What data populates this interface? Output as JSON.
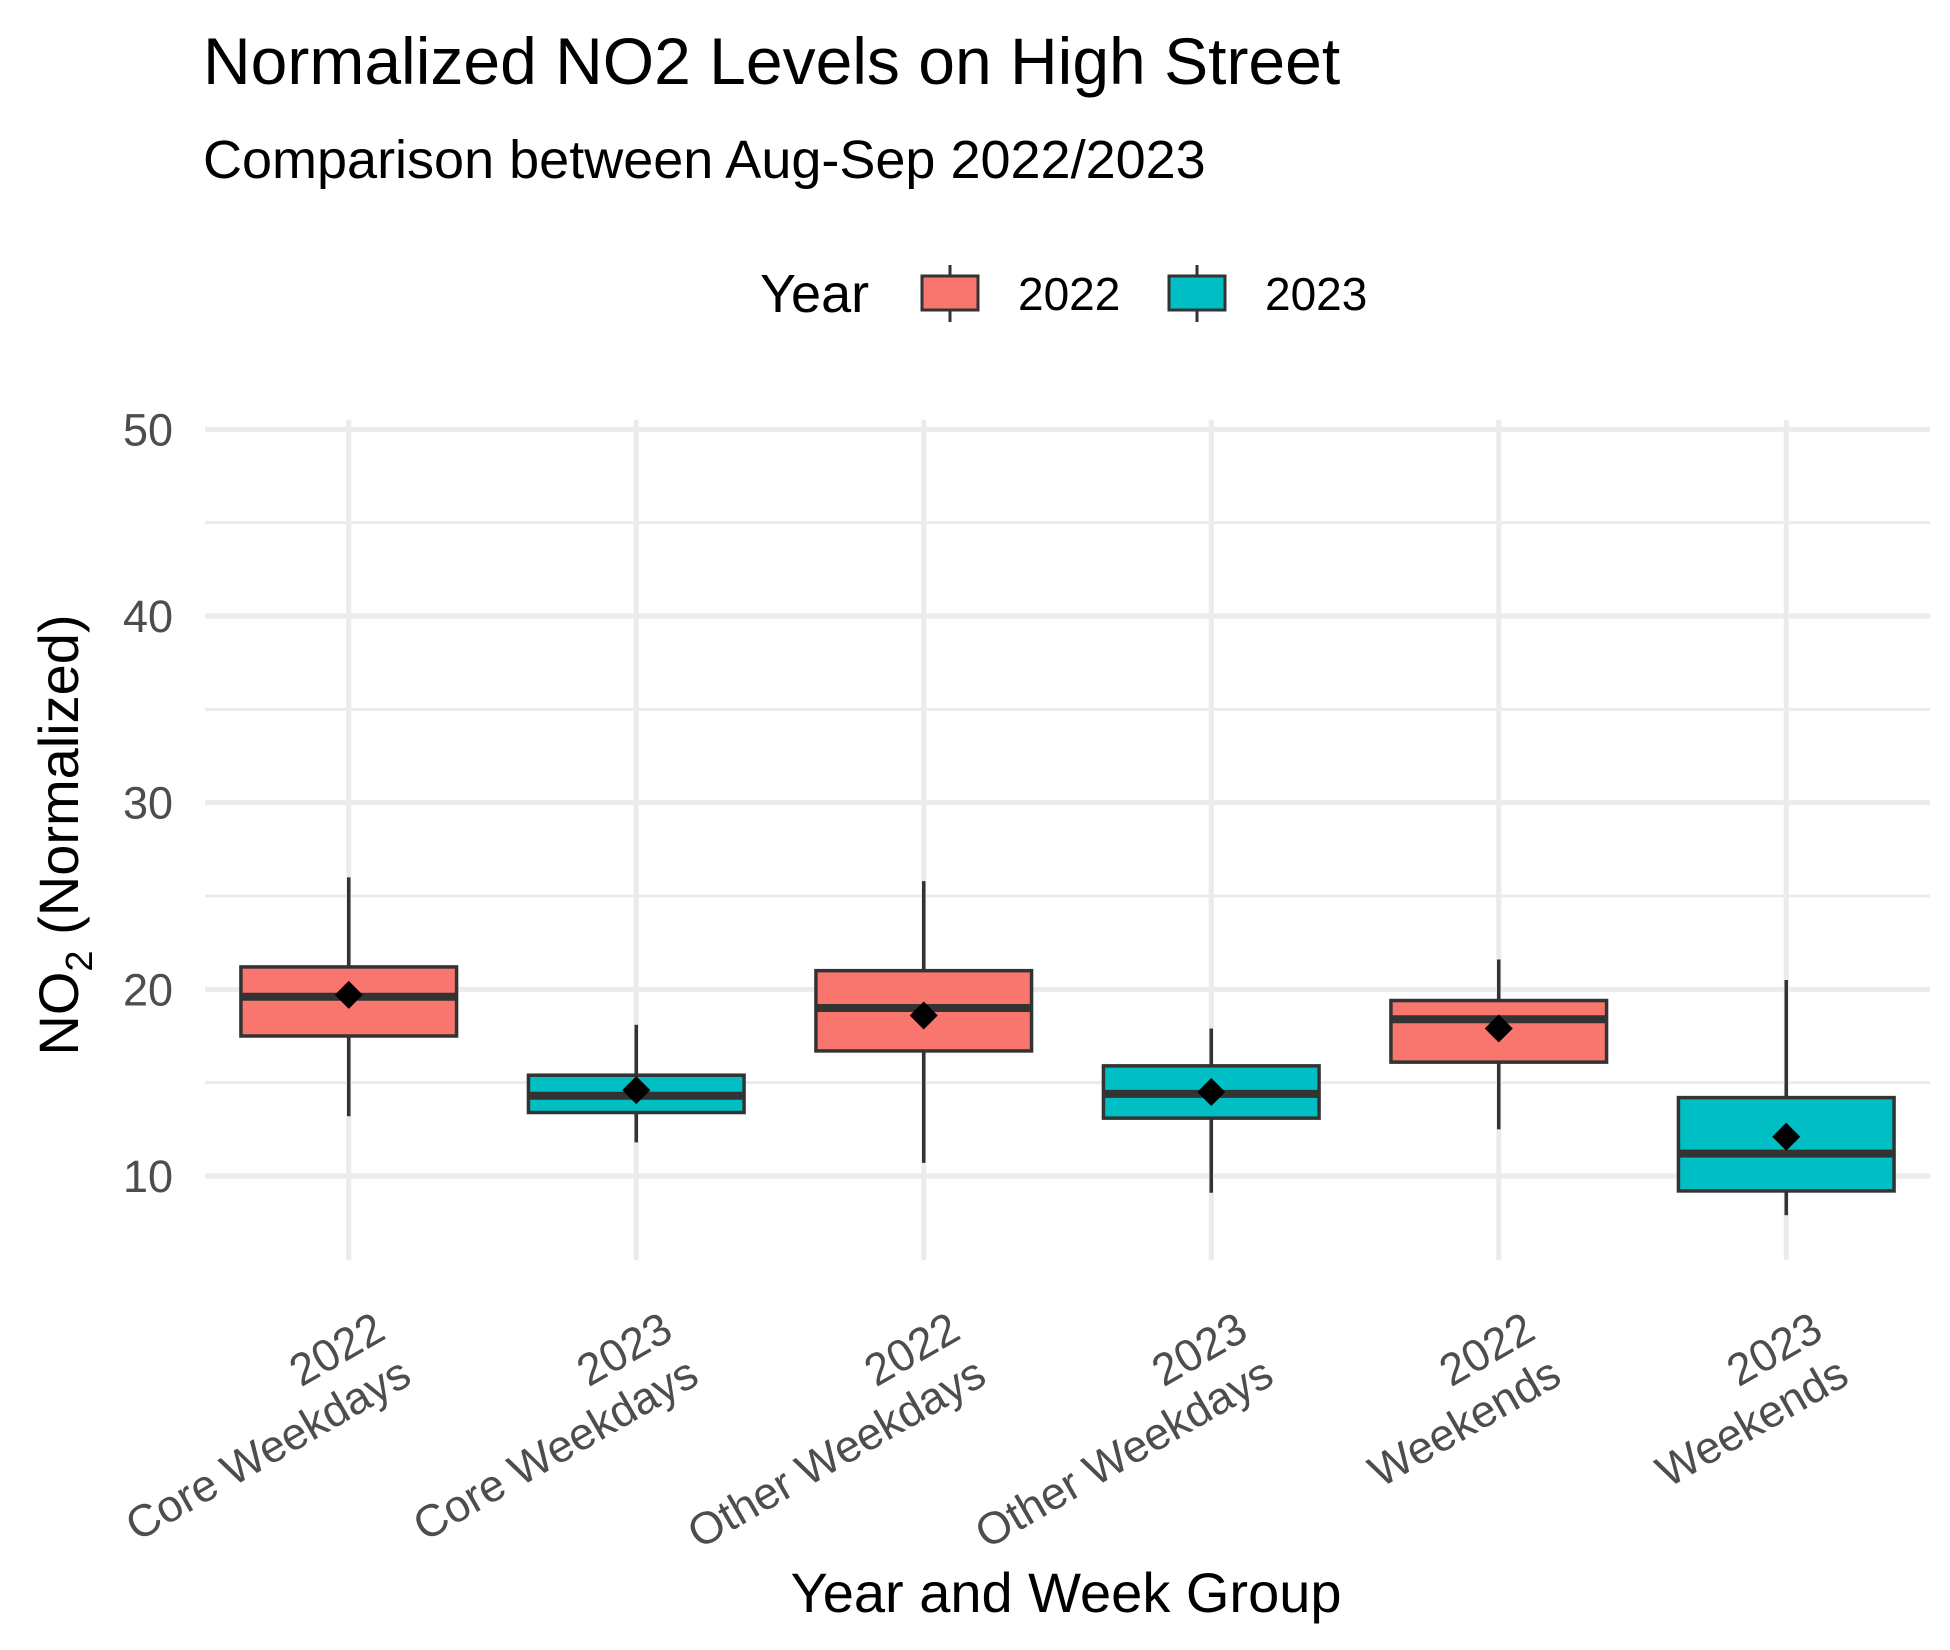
{
  "chart_data": {
    "type": "box",
    "title": "Normalized NO2 Levels on High Street",
    "subtitle": "Comparison between Aug-Sep 2022/2023",
    "xlabel": "Year and Week Group",
    "ylabel_main": "NO",
    "ylabel_sub": "2",
    "ylabel_rest": " (Normalized)",
    "ylim": [
      5.5,
      50.5
    ],
    "yticks": [
      10,
      20,
      30,
      40,
      50
    ],
    "legend": {
      "title": "Year",
      "position": "top",
      "entries": [
        {
          "label": "2022",
          "color": "#F8766D"
        },
        {
          "label": "2023",
          "color": "#00BFC4"
        }
      ]
    },
    "categories": [
      {
        "line1": "2022",
        "line2": "Core Weekdays",
        "year": "2022",
        "whisker_low": 13.2,
        "q1": 17.5,
        "median": 19.6,
        "q3": 21.2,
        "whisker_high": 26.0,
        "mean": 19.7
      },
      {
        "line1": "2023",
        "line2": "Core Weekdays",
        "year": "2023",
        "whisker_low": 11.8,
        "q1": 13.4,
        "median": 14.3,
        "q3": 15.4,
        "whisker_high": 18.1,
        "mean": 14.6
      },
      {
        "line1": "2022",
        "line2": "Other Weekdays",
        "year": "2022",
        "whisker_low": 10.7,
        "q1": 16.7,
        "median": 19.0,
        "q3": 21.0,
        "whisker_high": 25.8,
        "mean": 18.6
      },
      {
        "line1": "2023",
        "line2": "Other Weekdays",
        "year": "2023",
        "whisker_low": 9.1,
        "q1": 13.1,
        "median": 14.4,
        "q3": 15.9,
        "whisker_high": 17.9,
        "mean": 14.5
      },
      {
        "line1": "2022",
        "line2": "Weekends",
        "year": "2022",
        "whisker_low": 12.5,
        "q1": 16.1,
        "median": 18.4,
        "q3": 19.4,
        "whisker_high": 21.6,
        "mean": 17.9
      },
      {
        "line1": "2023",
        "line2": "Weekends",
        "year": "2023",
        "whisker_low": 7.9,
        "q1": 9.2,
        "median": 11.2,
        "q3": 14.2,
        "whisker_high": 20.5,
        "mean": 12.1
      }
    ],
    "grid": true
  }
}
